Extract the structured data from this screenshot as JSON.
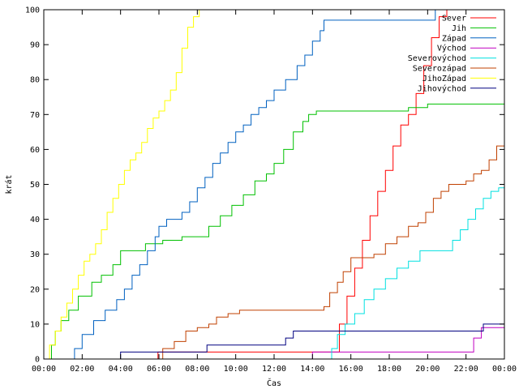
{
  "chart_data": {
    "type": "line",
    "title": "",
    "xlabel": "Čas",
    "ylabel": "krát",
    "xlim": [
      0,
      24
    ],
    "ylim": [
      0,
      100
    ],
    "x_ticks": [
      0,
      2,
      4,
      6,
      8,
      10,
      12,
      14,
      16,
      18,
      20,
      22,
      24
    ],
    "x_tick_labels": [
      "00:00",
      "02:00",
      "04:00",
      "06:00",
      "08:00",
      "10:00",
      "12:00",
      "14:00",
      "16:00",
      "18:00",
      "20:00",
      "22:00",
      "00:00"
    ],
    "y_ticks": [
      0,
      10,
      20,
      30,
      40,
      50,
      60,
      70,
      80,
      90,
      100
    ],
    "y_tick_labels": [
      "0",
      "10",
      "20",
      "30",
      "40",
      "50",
      "60",
      "70",
      "80",
      "90",
      "100"
    ],
    "grid": false,
    "legend_position": "top-right",
    "step": true,
    "series": [
      {
        "name": "Sever",
        "color": "#ff0000",
        "x": [
          5.9,
          5.95,
          15.1,
          15.4,
          15.8,
          16.2,
          16.6,
          17.0,
          17.4,
          17.8,
          18.2,
          18.6,
          19.0,
          19.4,
          19.8,
          20.2,
          20.6,
          21.0,
          21.4,
          21.8
        ],
        "y": [
          0,
          2,
          2,
          10,
          18,
          26,
          34,
          41,
          48,
          54,
          61,
          67,
          70,
          76,
          84,
          92,
          98,
          100,
          100,
          100
        ]
      },
      {
        "name": "Jih",
        "color": "#00c000",
        "x": [
          0.2,
          0.4,
          0.6,
          0.9,
          1.3,
          1.8,
          2.5,
          3.0,
          3.6,
          4.0,
          4.6,
          5.3,
          6.2,
          7.2,
          8.0,
          8.6,
          9.2,
          9.8,
          10.4,
          11.0,
          11.6,
          12.0,
          12.5,
          13.0,
          13.5,
          13.8,
          14.2,
          14.5,
          15.0,
          17.0,
          19.0,
          20.0,
          21.0,
          22.0,
          23.0,
          24.0
        ],
        "y": [
          0,
          4,
          8,
          11,
          14,
          18,
          22,
          24,
          27,
          31,
          31,
          33,
          34,
          35,
          35,
          38,
          41,
          44,
          47,
          51,
          53,
          56,
          60,
          65,
          68,
          70,
          71,
          71,
          71,
          71,
          72,
          73,
          73,
          73,
          73,
          73
        ]
      },
      {
        "name": "Západ",
        "color": "#0060c0",
        "x": [
          1.4,
          1.6,
          2.0,
          2.6,
          3.2,
          3.8,
          4.2,
          4.6,
          5.0,
          5.4,
          5.8,
          6.0,
          6.4,
          6.8,
          7.2,
          7.6,
          8.0,
          8.4,
          8.8,
          9.2,
          9.6,
          10.0,
          10.4,
          10.8,
          11.2,
          11.6,
          12.0,
          12.6,
          13.2,
          13.6,
          14.0,
          14.4,
          14.6,
          15.0,
          16.0,
          17.0,
          18.0,
          19.0,
          20.0,
          20.4
        ],
        "y": [
          0,
          3,
          7,
          11,
          14,
          17,
          20,
          24,
          27,
          31,
          35,
          38,
          40,
          40,
          42,
          45,
          49,
          52,
          56,
          59,
          62,
          65,
          67,
          70,
          72,
          74,
          77,
          80,
          84,
          87,
          91,
          94,
          97,
          97,
          97,
          97,
          97,
          97,
          97,
          100
        ]
      },
      {
        "name": "Východ",
        "color": "#c000c0",
        "x": [
          13.7,
          14.0,
          16.0,
          18.0,
          20.0,
          22.0,
          22.4,
          22.8,
          24.0
        ],
        "y": [
          0,
          2,
          2,
          2,
          2,
          2,
          6,
          9,
          9
        ]
      },
      {
        "name": "Severovýchod",
        "color": "#00e0e0",
        "x": [
          14.8,
          15.0,
          15.3,
          15.7,
          16.2,
          16.7,
          17.2,
          17.8,
          18.4,
          19.0,
          19.6,
          20.2,
          20.8,
          21.3,
          21.7,
          22.1,
          22.5,
          22.9,
          23.3,
          23.7,
          24.0
        ],
        "y": [
          0,
          3,
          7,
          10,
          13,
          17,
          20,
          23,
          26,
          28,
          31,
          31,
          31,
          34,
          37,
          40,
          43,
          46,
          48,
          49,
          51
        ]
      },
      {
        "name": "Severozápad",
        "color": "#c04000",
        "x": [
          5.8,
          6.2,
          6.8,
          7.4,
          8.0,
          8.6,
          9.0,
          9.6,
          10.2,
          11.0,
          12.0,
          13.0,
          14.0,
          14.6,
          14.9,
          15.3,
          15.6,
          16.0,
          16.6,
          17.2,
          17.8,
          18.4,
          19.0,
          19.5,
          19.9,
          20.3,
          20.7,
          21.1,
          21.6,
          22.0,
          22.4,
          22.8,
          23.2,
          23.6,
          24.0
        ],
        "y": [
          0,
          3,
          5,
          8,
          9,
          10,
          12,
          13,
          14,
          14,
          14,
          14,
          14,
          15,
          19,
          22,
          25,
          29,
          29,
          30,
          33,
          35,
          38,
          39,
          42,
          46,
          48,
          50,
          50,
          51,
          53,
          54,
          57,
          61,
          67
        ]
      },
      {
        "name": "JihoZápad",
        "color": "#ffff00",
        "x": [
          0.1,
          0.3,
          0.6,
          0.9,
          1.2,
          1.5,
          1.8,
          2.1,
          2.4,
          2.7,
          3.0,
          3.3,
          3.6,
          3.9,
          4.2,
          4.5,
          4.8,
          5.1,
          5.4,
          5.7,
          6.0,
          6.3,
          6.6,
          6.9,
          7.2,
          7.5,
          7.8,
          8.1
        ],
        "y": [
          0,
          4,
          8,
          12,
          16,
          20,
          24,
          28,
          30,
          33,
          37,
          42,
          46,
          50,
          54,
          57,
          59,
          62,
          66,
          69,
          71,
          74,
          77,
          82,
          89,
          95,
          98,
          100
        ]
      },
      {
        "name": "Jihovýchod",
        "color": "#000080",
        "x": [
          3.9,
          4.0,
          5.0,
          6.0,
          7.0,
          8.0,
          8.5,
          9.0,
          10.0,
          11.0,
          11.8,
          12.6,
          13.0,
          14.0,
          16.0,
          18.0,
          20.0,
          22.0,
          22.6,
          22.9,
          24.0
        ],
        "y": [
          0,
          2,
          2,
          2,
          2,
          2,
          4,
          4,
          4,
          4,
          4,
          6,
          8,
          8,
          8,
          8,
          8,
          8,
          8,
          10,
          10
        ]
      }
    ]
  }
}
